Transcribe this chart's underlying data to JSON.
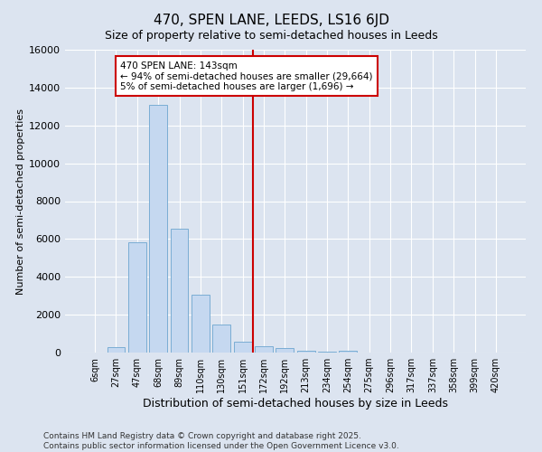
{
  "title": "470, SPEN LANE, LEEDS, LS16 6JD",
  "subtitle": "Size of property relative to semi-detached houses in Leeds",
  "xlabel": "Distribution of semi-detached houses by size in Leeds",
  "ylabel": "Number of semi-detached properties",
  "footer_line1": "Contains HM Land Registry data © Crown copyright and database right 2025.",
  "footer_line2": "Contains public sector information licensed under the Open Government Licence v3.0.",
  "bar_labels": [
    "6sqm",
    "27sqm",
    "47sqm",
    "68sqm",
    "89sqm",
    "110sqm",
    "130sqm",
    "151sqm",
    "172sqm",
    "192sqm",
    "213sqm",
    "234sqm",
    "254sqm",
    "275sqm",
    "296sqm",
    "317sqm",
    "337sqm",
    "358sqm",
    "399sqm",
    "420sqm"
  ],
  "bar_values": [
    0,
    300,
    5850,
    13100,
    6550,
    3050,
    1500,
    550,
    350,
    225,
    110,
    50,
    100,
    0,
    0,
    0,
    0,
    0,
    0,
    0
  ],
  "bar_color": "#c5d8f0",
  "bar_edge_color": "#7aadd4",
  "background_color": "#dce4f0",
  "grid_color": "#ffffff",
  "vline_color": "#cc0000",
  "vline_x_index": 7.5,
  "annotation_text": "470 SPEN LANE: 143sqm\n← 94% of semi-detached houses are smaller (29,664)\n5% of semi-detached houses are larger (1,696) →",
  "annotation_box_color": "#ffffff",
  "annotation_box_edge": "#cc0000",
  "ylim": [
    0,
    16000
  ],
  "yticks": [
    0,
    2000,
    4000,
    6000,
    8000,
    10000,
    12000,
    14000,
    16000
  ],
  "title_fontsize": 11,
  "subtitle_fontsize": 9,
  "xlabel_fontsize": 9,
  "ylabel_fontsize": 8,
  "xtick_fontsize": 7,
  "ytick_fontsize": 8,
  "annotation_fontsize": 7.5,
  "footer_fontsize": 6.5
}
